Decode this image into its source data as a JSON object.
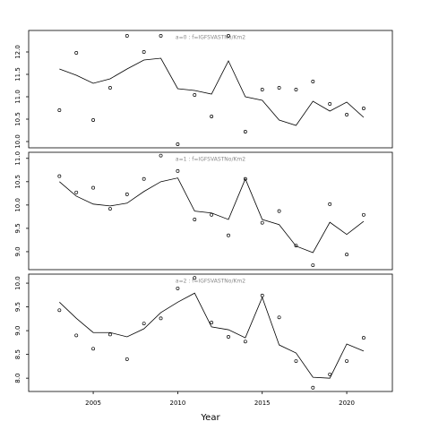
{
  "chart_data": [
    {
      "type": "scatter",
      "annotation": "a=0  :  f=IGFSVASTNo/Km2",
      "x": [
        2003,
        2004,
        2005,
        2006,
        2007,
        2008,
        2009,
        2010,
        2011,
        2012,
        2013,
        2014,
        2015,
        2016,
        2017,
        2018,
        2019,
        2020,
        2021
      ],
      "series": [
        {
          "type": "scatter",
          "color": "#000000",
          "values": [
            10.7,
            11.98,
            10.48,
            11.2,
            12.36,
            12.0,
            12.36,
            9.94,
            11.04,
            10.56,
            12.36,
            10.22,
            11.16,
            11.2,
            11.16,
            11.34,
            10.84,
            10.6,
            10.74
          ]
        },
        {
          "type": "line",
          "color": "#000000",
          "values": [
            11.62,
            11.48,
            11.3,
            11.4,
            11.62,
            11.82,
            11.86,
            11.18,
            11.14,
            11.06,
            11.8,
            11.0,
            10.92,
            10.48,
            10.36,
            10.9,
            10.68,
            10.88,
            10.54
          ]
        }
      ],
      "xlim": [
        2001.18,
        2022.7
      ],
      "ylim": [
        9.86,
        12.48
      ],
      "yticks": [
        {
          "value": 10,
          "label": "10.0"
        },
        10.5,
        {
          "value": 11,
          "label": "11.0"
        },
        11.5,
        {
          "value": 12,
          "label": "12.0"
        }
      ]
    },
    {
      "type": "scatter",
      "annotation": "a=1  :  f=IGFSVASTNo/Km2",
      "x": [
        2003,
        2004,
        2005,
        2006,
        2007,
        2008,
        2009,
        2010,
        2011,
        2012,
        2013,
        2014,
        2015,
        2016,
        2017,
        2018,
        2019,
        2020,
        2021
      ],
      "series": [
        {
          "type": "scatter",
          "color": "#000000",
          "values": [
            10.62,
            10.27,
            10.37,
            9.92,
            10.23,
            10.56,
            11.06,
            10.73,
            9.69,
            9.79,
            9.35,
            10.56,
            9.62,
            9.87,
            9.13,
            8.71,
            10.02,
            8.94,
            9.79
          ]
        },
        {
          "type": "line",
          "color": "#000000",
          "values": [
            10.5,
            10.19,
            10.02,
            9.98,
            10.04,
            10.29,
            10.5,
            10.58,
            9.87,
            9.83,
            9.69,
            10.56,
            9.69,
            9.58,
            9.12,
            8.98,
            9.63,
            9.37,
            9.65
          ]
        }
      ],
      "xlim": [
        2001.18,
        2022.7
      ],
      "ylim": [
        8.615,
        11.13
      ],
      "yticks": [
        {
          "value": 9,
          "label": "9.0"
        },
        9.5,
        {
          "value": 10,
          "label": "10.0"
        },
        10.5,
        {
          "value": 11,
          "label": "11.0"
        }
      ]
    },
    {
      "type": "scatter",
      "annotation": "a=2  :  f=IGFSVASTNo/Km2",
      "xlabel": "Year",
      "x": [
        2003,
        2004,
        2005,
        2006,
        2007,
        2008,
        2009,
        2010,
        2011,
        2012,
        2013,
        2014,
        2015,
        2016,
        2017,
        2018,
        2019,
        2020,
        2021
      ],
      "series": [
        {
          "type": "scatter",
          "color": "#000000",
          "values": [
            9.43,
            8.9,
            8.62,
            8.92,
            8.4,
            9.15,
            9.26,
            9.89,
            10.11,
            9.17,
            8.87,
            8.77,
            9.74,
            9.28,
            8.36,
            7.8,
            8.08,
            8.36,
            8.85
          ]
        },
        {
          "type": "line",
          "color": "#000000",
          "values": [
            9.6,
            9.26,
            8.96,
            8.96,
            8.87,
            9.04,
            9.38,
            9.6,
            9.79,
            9.08,
            9.02,
            8.85,
            9.7,
            8.7,
            8.53,
            8.02,
            8.0,
            8.72,
            8.57
          ]
        }
      ],
      "xlim": [
        2001.18,
        2022.7
      ],
      "ylim": [
        7.72,
        10.19
      ],
      "xticks": [
        2005,
        2010,
        2015,
        2020
      ],
      "yticks": [
        {
          "value": 8,
          "label": "8.0"
        },
        8.5,
        {
          "value": 9,
          "label": "9.0"
        },
        9.5,
        {
          "value": 10,
          "label": "10.0"
        }
      ]
    }
  ]
}
